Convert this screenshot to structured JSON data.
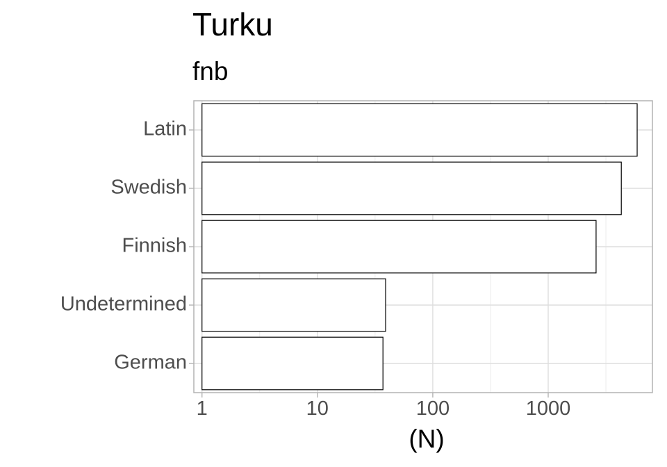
{
  "chart_data": {
    "type": "bar",
    "orientation": "horizontal",
    "title": "Turku",
    "subtitle": "fnb",
    "xlabel": "(N)",
    "ylabel": "",
    "x_scale": "log10",
    "xlim": [
      0.85,
      8000
    ],
    "x_ticks": [
      1,
      10,
      100,
      1000
    ],
    "x_tick_labels": [
      "1",
      "10",
      "100",
      "1000"
    ],
    "categories": [
      "Latin",
      "Swedish",
      "Finnish",
      "Undetermined",
      "German"
    ],
    "values": [
      5900,
      4300,
      2600,
      39,
      37
    ],
    "grid": true,
    "colors": {
      "bar_fill": "#ffffff",
      "bar_stroke": "#000000",
      "grid": "#dedede",
      "label": "#4d4d4d"
    }
  }
}
